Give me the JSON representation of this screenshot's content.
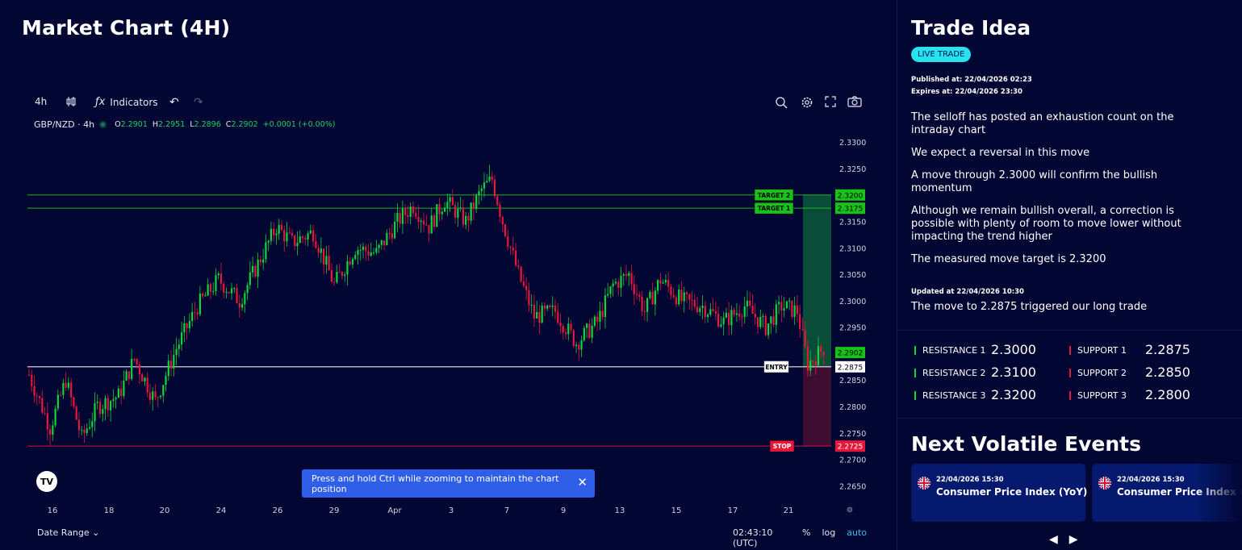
{
  "page": {
    "title": "Market Chart (4H)"
  },
  "toolbar": {
    "interval": "4h",
    "indicators_label": "Indicators",
    "icons": [
      "candles-icon",
      "fx-icon",
      "undo-icon",
      "redo-icon",
      "zoom-icon",
      "gear-icon",
      "fullscreen-icon",
      "camera-icon"
    ]
  },
  "legend": {
    "symbol": "GBP/NZD · 4h",
    "o_label": "O",
    "o": "2.2901",
    "h_label": "H",
    "h": "2.2951",
    "l_label": "L",
    "l": "2.2896",
    "c_label": "C",
    "c": "2.2902",
    "change": "+0.0001 (+0.00%)"
  },
  "chart_data": {
    "type": "candlestick",
    "symbol": "GBP/NZD",
    "ylim": [
      2.262,
      2.334
    ],
    "y_ticks": [
      "2.3300",
      "2.3250",
      "2.3150",
      "2.3100",
      "2.3050",
      "2.3000",
      "2.2950",
      "2.2850",
      "2.2800",
      "2.2750",
      "2.2700",
      "2.2650"
    ],
    "x_ticks": [
      "16",
      "18",
      "20",
      "24",
      "26",
      "29",
      "Apr",
      "3",
      "7",
      "9",
      "13",
      "15",
      "17",
      "21"
    ],
    "levels": [
      {
        "name": "TARGET 2",
        "value": 2.32,
        "label": "2.3200",
        "color": "#16c316"
      },
      {
        "name": "TARGET 1",
        "value": 2.3175,
        "label": "2.3175",
        "color": "#16c316"
      },
      {
        "name": "ENTRY",
        "value": 2.2875,
        "label": "2.2875",
        "color": "#ffffff"
      },
      {
        "name": "STOP",
        "value": 2.2725,
        "label": "2.2725",
        "color": "#e8173a"
      }
    ],
    "current_price": {
      "value": 2.2902,
      "label": "2.2902"
    },
    "colors": {
      "up": "#0fd43a",
      "down": "#e8173a",
      "grid": "#0b103f"
    }
  },
  "toast": {
    "text": "Press and hold Ctrl while zooming to maintain the chart position"
  },
  "footer": {
    "date_range": "Date Range",
    "clock": "02:43:10 (UTC)",
    "pct": "%",
    "log": "log",
    "auto": "auto"
  },
  "trade": {
    "title": "Trade Idea",
    "badge": "LIVE TRADE",
    "published": "Published at: 22/04/2026 02:23",
    "expires": "Expires at: 22/04/2026 23:30",
    "paragraphs": [
      "The selloff has posted an exhaustion count on the intraday chart",
      "We expect a reversal in this move",
      "A move through 2.3000 will confirm the bullish momentum",
      "Although we remain bullish overall, a correction is possible with plenty of room to move lower without impacting the trend higher",
      "The measured move target is 2.3200"
    ],
    "updated": "Updated at 22/04/2026 10:30",
    "update_text": "The move to 2.2875 triggered our long trade"
  },
  "levels": {
    "resistance": [
      {
        "label": "RESISTANCE 1",
        "value": "2.3000"
      },
      {
        "label": "RESISTANCE 2",
        "value": "2.3100"
      },
      {
        "label": "RESISTANCE 3",
        "value": "2.3200"
      }
    ],
    "support": [
      {
        "label": "SUPPORT 1",
        "value": "2.2875"
      },
      {
        "label": "SUPPORT 2",
        "value": "2.2850"
      },
      {
        "label": "SUPPORT 3",
        "value": "2.2800"
      }
    ]
  },
  "events": {
    "title": "Next Volatile Events",
    "items": [
      {
        "datetime": "22/04/2026 15:30",
        "name": "Consumer Price Index (YoY)",
        "flag": "uk-flag-icon"
      },
      {
        "datetime": "22/04/2026 15:30",
        "name": "Consumer Price Index (M",
        "flag": "uk-flag-icon"
      }
    ]
  }
}
